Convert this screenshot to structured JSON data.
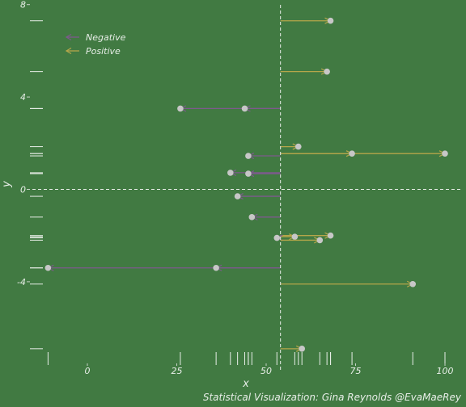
{
  "chart_data": {
    "type": "segment-arrows",
    "xlabel": "x",
    "ylabel": "y",
    "x_ticks": [
      0,
      25,
      50,
      75,
      100
    ],
    "y_ticks": [
      -4,
      0,
      4,
      8
    ],
    "xlim": [
      -12,
      104
    ],
    "ylim": [
      -6.8,
      8.2
    ],
    "vline_x": 54,
    "hline_y": 0,
    "grid": false,
    "rugs": true,
    "legend_position": "top-left",
    "colors": {
      "background": "#417A42",
      "negative": "#7D5A8C",
      "positive": "#B5A64A",
      "point": "#C7C7C7",
      "reference_line": "#E8EEE8",
      "text": "#E8EEE8"
    },
    "legend": [
      {
        "label": "Negative",
        "color": "#7D5A8C"
      },
      {
        "label": "Positive",
        "color": "#B5A64A"
      }
    ],
    "caption": "Statistical Visualization: Gina Reynolds @EvaMaeRey",
    "segments": [
      {
        "y": 7.3,
        "x_end": 68
      },
      {
        "y": 5.1,
        "x_end": 67
      },
      {
        "y": 3.5,
        "x_end": 26
      },
      {
        "y": 3.5,
        "x_end": 44
      },
      {
        "y": 1.85,
        "x_end": 59
      },
      {
        "y": 1.55,
        "x_end": 100
      },
      {
        "y": 1.55,
        "x_end": 74
      },
      {
        "y": 1.45,
        "x_end": 45
      },
      {
        "y": 0.72,
        "x_end": 40
      },
      {
        "y": 0.68,
        "x_end": 45
      },
      {
        "y": -0.3,
        "x_end": 42
      },
      {
        "y": -1.2,
        "x_end": 46
      },
      {
        "y": -2.0,
        "x_end": 68
      },
      {
        "y": -2.05,
        "x_end": 58
      },
      {
        "y": -2.1,
        "x_end": 53
      },
      {
        "y": -2.2,
        "x_end": 65
      },
      {
        "y": -3.4,
        "x_end": -11
      },
      {
        "y": -3.4,
        "x_end": 36
      },
      {
        "y": -4.1,
        "x_end": 91
      },
      {
        "y": -6.9,
        "x_end": 60
      }
    ]
  }
}
